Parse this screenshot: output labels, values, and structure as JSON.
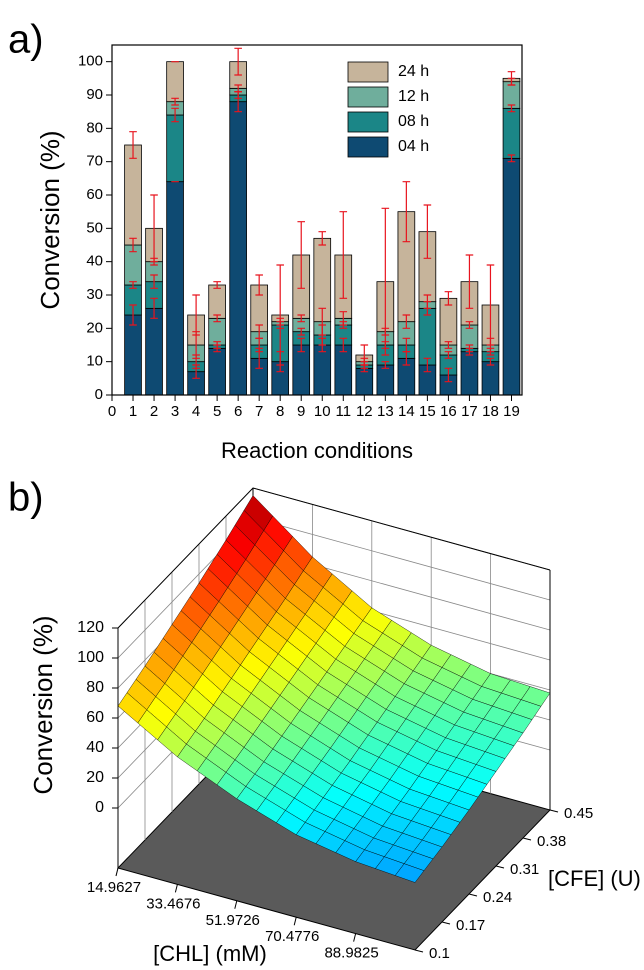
{
  "chart_data": [
    {
      "type": "stacked_bar",
      "panel_label": "a)",
      "xlabel": "Reaction conditions",
      "ylabel": "Conversion (%)",
      "x": [
        1,
        2,
        3,
        4,
        5,
        6,
        7,
        8,
        9,
        10,
        11,
        12,
        13,
        14,
        15,
        16,
        17,
        18,
        19
      ],
      "xlim": [
        0,
        19.5
      ],
      "xticks": [
        0,
        1,
        2,
        3,
        4,
        5,
        6,
        7,
        8,
        9,
        10,
        11,
        12,
        13,
        14,
        15,
        16,
        17,
        18,
        19
      ],
      "ylim": [
        0,
        105
      ],
      "yticks": [
        0,
        10,
        20,
        30,
        40,
        50,
        60,
        70,
        80,
        90,
        100
      ],
      "error_color": "#e8141e",
      "series": [
        {
          "name": "04 h",
          "color": "#0e4a72",
          "values": [
            24,
            26,
            64,
            7,
            14,
            88,
            11,
            10,
            15,
            15,
            15,
            8,
            9,
            11,
            9,
            6,
            13,
            10,
            71
          ],
          "errors": [
            3,
            3,
            0,
            2,
            1,
            3,
            3,
            3,
            2,
            2,
            2,
            1,
            1,
            2,
            2,
            2,
            1,
            1,
            1
          ]
        },
        {
          "name": "08 h",
          "color": "#1b8687",
          "values": [
            9,
            8,
            20,
            3,
            1,
            2,
            4,
            11,
            4,
            3,
            6,
            1,
            6,
            4,
            17,
            6,
            1,
            3,
            15
          ],
          "errors": [
            1,
            2,
            2,
            2,
            1,
            1,
            2,
            1,
            1,
            3,
            1,
            1,
            1,
            2,
            2,
            1,
            1,
            1,
            1
          ]
        },
        {
          "name": "12 h",
          "color": "#6fae9c",
          "values": [
            12,
            6,
            4,
            5,
            8,
            2,
            4,
            1,
            4,
            4,
            2,
            1,
            4,
            7,
            2,
            3,
            7,
            2,
            8
          ],
          "errors": [
            2,
            1,
            1,
            4,
            1,
            1,
            2,
            1,
            1,
            4,
            2,
            1,
            1,
            2,
            2,
            1,
            1,
            2,
            1
          ]
        },
        {
          "name": "24 h",
          "color": "#c6b49b",
          "values": [
            30,
            10,
            12,
            9,
            10,
            8,
            14,
            2,
            19,
            25,
            19,
            2,
            15,
            33,
            21,
            14,
            13,
            12,
            1
          ],
          "errors": [
            4,
            10,
            0,
            6,
            1,
            4,
            3,
            15,
            10,
            2,
            13,
            3,
            22,
            9,
            8,
            2,
            8,
            12,
            2
          ]
        }
      ]
    },
    {
      "type": "surface",
      "panel_label": "b)",
      "xlabel": "[CHL] (mM)",
      "ylabel": "[CFE] (U)",
      "zlabel": "Conversion (%)",
      "x": [
        14.9627,
        33.4676,
        51.9726,
        70.4776,
        88.9825,
        107.4874
      ],
      "y": [
        0.1,
        0.17,
        0.24,
        0.31,
        0.38,
        0.45
      ],
      "xlim": [
        14.9627,
        107.4874
      ],
      "xticks": [
        14.9627,
        33.4676,
        51.9726,
        70.4776,
        88.9825
      ],
      "ylim": [
        0.1,
        0.45
      ],
      "yticks": [
        0.1,
        0.17,
        0.24,
        0.31,
        0.38,
        0.45
      ],
      "zlim": [
        -40,
        120
      ],
      "zticks": [
        0,
        20,
        40,
        60,
        80,
        100,
        120
      ],
      "floor_color": "#5a5a5a",
      "z": [
        [
          68,
          45,
          28,
          15,
          8,
          5
        ],
        [
          76,
          52,
          34,
          21,
          13,
          10
        ],
        [
          85,
          60,
          41,
          27,
          19,
          16
        ],
        [
          94,
          68,
          48,
          34,
          26,
          23
        ],
        [
          104,
          76,
          55,
          41,
          33,
          30
        ],
        [
          115,
          85,
          62,
          48,
          40,
          38
        ]
      ]
    }
  ]
}
